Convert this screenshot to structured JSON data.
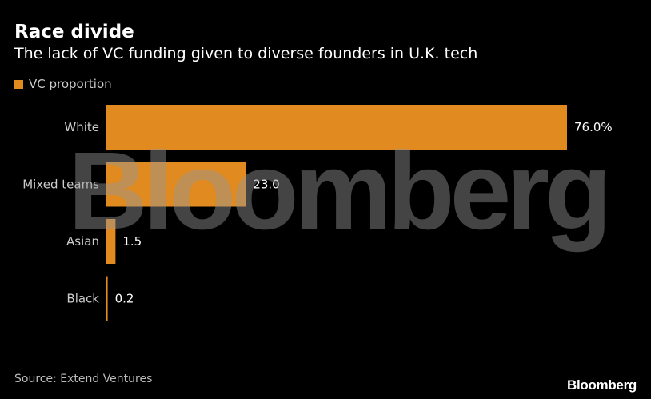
{
  "title": "Race divide",
  "subtitle": "The lack of VC funding given to diverse founders in U.K. tech",
  "legend": {
    "label": "VC proportion",
    "color": "#e08a20"
  },
  "watermark": "Bloomberg",
  "source": "Source: Extend Ventures",
  "logo": "Bloomberg",
  "chart_data": {
    "type": "bar",
    "orientation": "horizontal",
    "title": "Race divide",
    "subtitle": "The lack of VC funding given to diverse founders in U.K. tech",
    "categories": [
      "White",
      "Mixed teams",
      "Asian",
      "Black"
    ],
    "series": [
      {
        "name": "VC proportion",
        "values": [
          76.0,
          23.0,
          1.5,
          0.2
        ],
        "labels": [
          "76.0%",
          "23.0",
          "1.5",
          "0.2"
        ],
        "color": "#e08a20"
      }
    ],
    "xlim": [
      0,
      76.0
    ],
    "grid": false,
    "legend_position": "top-left"
  }
}
